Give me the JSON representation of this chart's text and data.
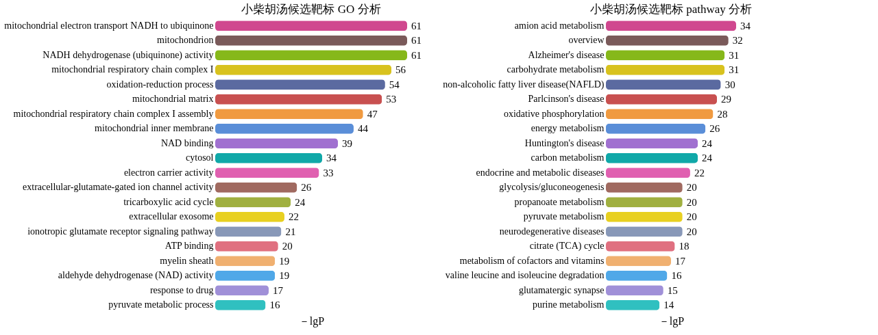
{
  "chart_data": [
    {
      "type": "bar",
      "orientation": "horizontal",
      "title": "小柴胡汤候选靶标 GO 分析",
      "xlabel": "－lgP",
      "data_labels": true,
      "categories": [
        "mitochondrial electron transport NADH to ubiquinone",
        "mitochondrion",
        "NADH dehydrogenase (ubiquinone) activity",
        "mitochondrial respiratory chain complex I",
        "oxidation-reduction process",
        "mitochondrial matrix",
        "mitochondrial respiratory chain complex I assembly",
        "mitochondrial inner membrane",
        "NAD binding",
        "cytosol",
        "electron carrier activity",
        "extracellular-glutamate-gated ion channel activity",
        "tricarboxylic acid cycle",
        "extracellular  exosome",
        "ionotropic glutamate receptor signaling pathway",
        "ATP binding",
        "myelin sheath",
        "aldehyde dehydrogenase (NAD) activity",
        "response to drug",
        "pyruvate metabolic process"
      ],
      "values": [
        61,
        61,
        61,
        56,
        54,
        53,
        47,
        44,
        39,
        34,
        33,
        26,
        24,
        22,
        21,
        20,
        19,
        19,
        17,
        16
      ],
      "colors": [
        "#d0488f",
        "#7a5a5a",
        "#86b81a",
        "#d8c21e",
        "#5b6aa0",
        "#c85050",
        "#f09a40",
        "#5a8ed8",
        "#a070d0",
        "#10a8a8",
        "#e060b0",
        "#a06a60",
        "#a0b040",
        "#e8d020",
        "#8898b8",
        "#e07080",
        "#f0b070",
        "#50a8e8",
        "#a090d8",
        "#30c0c0"
      ]
    },
    {
      "type": "bar",
      "orientation": "horizontal",
      "title": "小柴胡汤候选靶标 pathway 分析",
      "xlabel": "－lgP",
      "data_labels": true,
      "categories": [
        "amion acid metabolism",
        "overview",
        "Alzheimer's disease",
        "carbohydrate metabolism",
        "non-alcoholic fatty liver disease(NAFLD)",
        "Parlcinson's disease",
        "oxidative phosphorylation",
        "energy metabolism",
        "Huntington's disease",
        "carbon metabolism",
        "endocrine and metabolic diseases",
        "glycolysis/gluconeogenesis",
        "propanoate metabolism",
        "pyruvate metabolism",
        "neurodegenerative diseases",
        "citrate (TCA) cycle",
        "metabolism of cofactors and vitamins",
        "valine leucine and isoleucine degradation",
        "glutamatergic synapse",
        "purine metabolism"
      ],
      "values": [
        34,
        32,
        31,
        31,
        30,
        29,
        28,
        26,
        24,
        24,
        22,
        20,
        20,
        20,
        20,
        18,
        17,
        16,
        15,
        14
      ],
      "colors": [
        "#d0488f",
        "#7a5a5a",
        "#86b81a",
        "#d8c21e",
        "#5b6aa0",
        "#c85050",
        "#f09a40",
        "#5a8ed8",
        "#a070d0",
        "#10a8a8",
        "#e060b0",
        "#a06a60",
        "#a0b040",
        "#e8d020",
        "#8898b8",
        "#e07080",
        "#f0b070",
        "#50a8e8",
        "#a090d8",
        "#30c0c0"
      ]
    }
  ]
}
